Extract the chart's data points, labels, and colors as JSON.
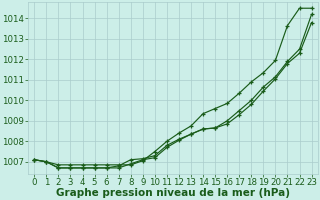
{
  "title": "",
  "xlabel": "Graphe pression niveau de la mer (hPa)",
  "bg_color": "#cceee8",
  "plot_bg_color": "#cceee8",
  "grid_color": "#aacccc",
  "line_color": "#1a5c1a",
  "text_color": "#1a5c1a",
  "xlim": [
    -0.5,
    23.5
  ],
  "ylim": [
    1006.4,
    1014.8
  ],
  "yticks": [
    1007,
    1008,
    1009,
    1010,
    1011,
    1012,
    1013,
    1014
  ],
  "xticks": [
    0,
    1,
    2,
    3,
    4,
    5,
    6,
    7,
    8,
    9,
    10,
    11,
    12,
    13,
    14,
    15,
    16,
    17,
    18,
    19,
    20,
    21,
    22,
    23
  ],
  "line1": [
    1007.1,
    1007.0,
    1006.85,
    1006.85,
    1006.85,
    1006.85,
    1006.85,
    1006.85,
    1006.85,
    1007.05,
    1007.5,
    1008.0,
    1008.4,
    1008.75,
    1009.35,
    1009.6,
    1009.85,
    1010.35,
    1010.9,
    1011.35,
    1011.95,
    1013.65,
    1014.5,
    1014.5
  ],
  "line2": [
    1007.1,
    1007.0,
    1006.7,
    1006.7,
    1006.7,
    1006.7,
    1006.7,
    1006.7,
    1006.9,
    1007.1,
    1007.2,
    1007.7,
    1008.05,
    1008.35,
    1008.6,
    1008.65,
    1009.0,
    1009.5,
    1010.0,
    1010.65,
    1011.15,
    1011.9,
    1012.5,
    1014.2
  ],
  "line3": [
    1007.1,
    1007.0,
    1006.7,
    1006.7,
    1006.7,
    1006.7,
    1006.7,
    1006.8,
    1007.1,
    1007.15,
    1007.3,
    1007.8,
    1008.1,
    1008.35,
    1008.6,
    1008.65,
    1008.85,
    1009.3,
    1009.8,
    1010.45,
    1011.05,
    1011.8,
    1012.3,
    1013.8
  ],
  "xlabel_fontsize": 7.5,
  "tick_fontsize": 6.2
}
